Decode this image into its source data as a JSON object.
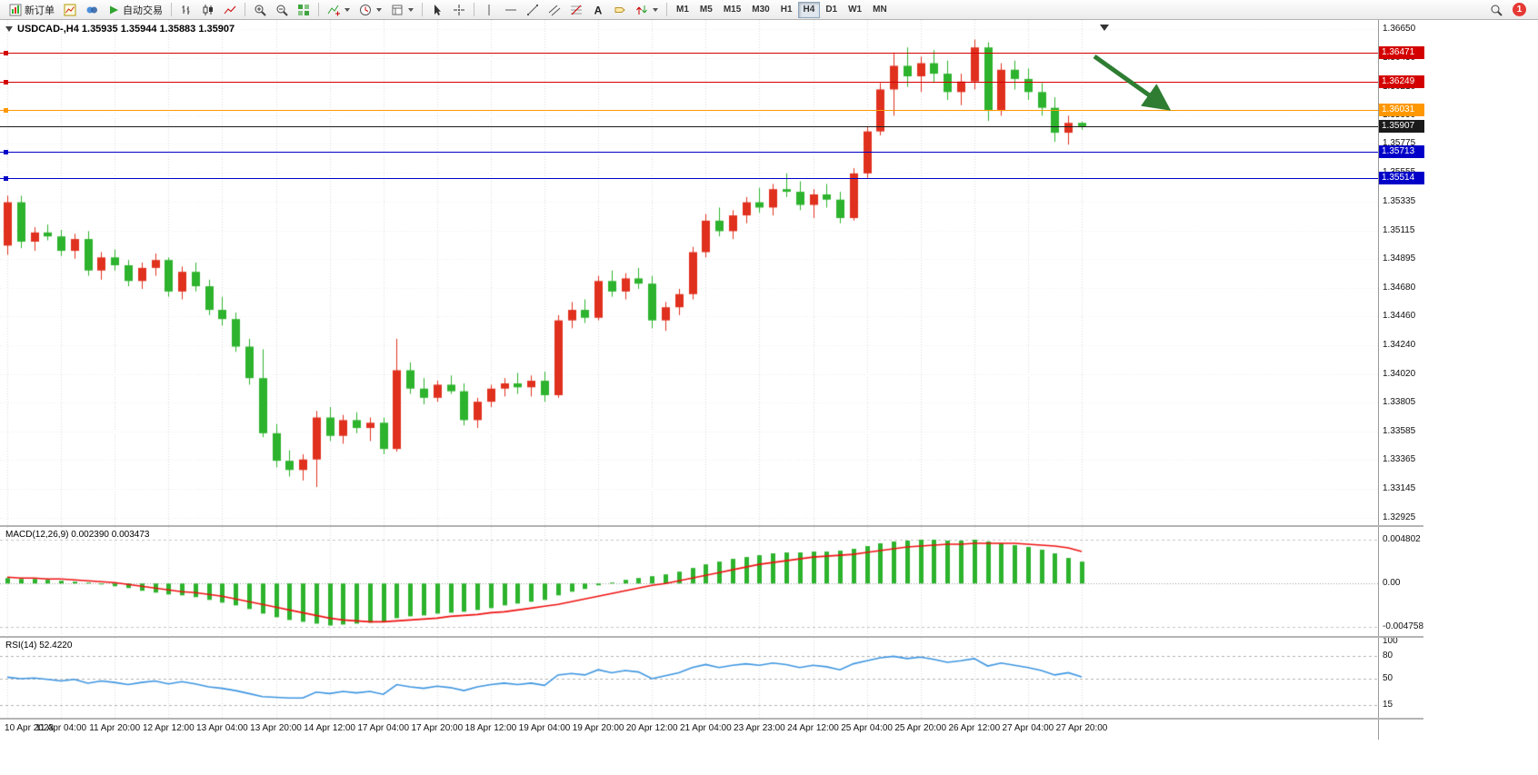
{
  "toolbar": {
    "new_order_label": "新订单",
    "auto_trading_label": "自动交易",
    "text_tool_glyph": "A",
    "timeframes": [
      "M1",
      "M5",
      "M15",
      "M30",
      "H1",
      "H4",
      "D1",
      "W1",
      "MN"
    ],
    "active_timeframe": "H4",
    "badge_count": "1"
  },
  "chart_data": {
    "type": "candlestick",
    "symbol": "USDCAD-",
    "timeframe": "H4",
    "title": "USDCAD-,H4  1.35935 1.35944 1.35883 1.35907",
    "ohlc_display": {
      "open": "1.35935",
      "high": "1.35944",
      "low": "1.35883",
      "close": "1.35907"
    },
    "y_range": [
      1.32925,
      1.3665
    ],
    "price_scale_labels": [
      "1.36650",
      "1.36430",
      "1.36210",
      "1.35990",
      "1.35775",
      "1.35555",
      "1.35335",
      "1.35115",
      "1.34895",
      "1.34680",
      "1.34460",
      "1.34240",
      "1.34020",
      "1.33805",
      "1.33585",
      "1.33365",
      "1.33145",
      "1.32925"
    ],
    "time_labels": [
      "10 Apr 2023",
      "11 Apr 04:00",
      "11 Apr 20:00",
      "12 Apr 12:00",
      "13 Apr 04:00",
      "13 Apr 20:00",
      "14 Apr 12:00",
      "17 Apr 04:00",
      "17 Apr 20:00",
      "18 Apr 12:00",
      "19 Apr 04:00",
      "19 Apr 20:00",
      "20 Apr 12:00",
      "21 Apr 04:00",
      "23 Apr 23:00",
      "24 Apr 12:00",
      "25 Apr 04:00",
      "25 Apr 20:00",
      "26 Apr 12:00",
      "27 Apr 04:00",
      "27 Apr 20:00"
    ],
    "label_every_n_candles": 4,
    "colors": {
      "up": "#e0301e",
      "down": "#2db32d",
      "macd_hist": "#2db32d",
      "macd_signal": "#ee1111",
      "rsi": "#3d95e0",
      "grid": "#d9d9d9"
    },
    "horizontal_lines": [
      {
        "price": 1.36471,
        "label": "1.36471",
        "color": "#d40000"
      },
      {
        "price": 1.36249,
        "label": "1.36249",
        "color": "#d40000"
      },
      {
        "price": 1.36031,
        "label": "1.36031",
        "color": "#ff9800"
      },
      {
        "price": 1.35713,
        "label": "1.35713",
        "color": "#0000c8"
      },
      {
        "price": 1.35514,
        "label": "1.35514",
        "color": "#0000c8"
      }
    ],
    "current_price": {
      "value": 1.35907,
      "label": "1.35907",
      "color": "#1a1a1a"
    },
    "arrow_annotation": {
      "color": "#2e7d32",
      "direction": "down-right"
    },
    "candles": [
      [
        1.35,
        1.3538,
        1.3493,
        1.3533
      ],
      [
        1.3533,
        1.3538,
        1.3498,
        1.3503
      ],
      [
        1.3503,
        1.3514,
        1.3496,
        1.351
      ],
      [
        1.351,
        1.3516,
        1.3504,
        1.3507
      ],
      [
        1.3507,
        1.3512,
        1.3492,
        1.3496
      ],
      [
        1.3496,
        1.3509,
        1.349,
        1.3505
      ],
      [
        1.3505,
        1.3511,
        1.3477,
        1.3481
      ],
      [
        1.3481,
        1.3495,
        1.3474,
        1.3491
      ],
      [
        1.3491,
        1.3497,
        1.3481,
        1.3485
      ],
      [
        1.3485,
        1.3489,
        1.3469,
        1.3473
      ],
      [
        1.3473,
        1.3487,
        1.3467,
        1.3483
      ],
      [
        1.3483,
        1.3494,
        1.3477,
        1.3489
      ],
      [
        1.3489,
        1.3491,
        1.3461,
        1.3465
      ],
      [
        1.3465,
        1.3484,
        1.3459,
        1.348
      ],
      [
        1.348,
        1.3487,
        1.3465,
        1.3469
      ],
      [
        1.3469,
        1.3474,
        1.3447,
        1.3451
      ],
      [
        1.3451,
        1.3461,
        1.3439,
        1.3444
      ],
      [
        1.3444,
        1.3449,
        1.3419,
        1.3423
      ],
      [
        1.3423,
        1.3429,
        1.3394,
        1.3399
      ],
      [
        1.3399,
        1.3421,
        1.3354,
        1.3357
      ],
      [
        1.3357,
        1.3364,
        1.3331,
        1.3336
      ],
      [
        1.3336,
        1.3344,
        1.3324,
        1.3329
      ],
      [
        1.3329,
        1.3341,
        1.3321,
        1.3337
      ],
      [
        1.3337,
        1.3374,
        1.3316,
        1.3369
      ],
      [
        1.3369,
        1.3377,
        1.3351,
        1.3355
      ],
      [
        1.3355,
        1.3371,
        1.3349,
        1.3367
      ],
      [
        1.3367,
        1.3373,
        1.3357,
        1.3361
      ],
      [
        1.3361,
        1.3369,
        1.3351,
        1.3365
      ],
      [
        1.3365,
        1.3369,
        1.3341,
        1.3345
      ],
      [
        1.3345,
        1.3429,
        1.3343,
        1.3405
      ],
      [
        1.3405,
        1.3411,
        1.3387,
        1.3391
      ],
      [
        1.3391,
        1.3399,
        1.3379,
        1.3384
      ],
      [
        1.3384,
        1.3397,
        1.3381,
        1.3394
      ],
      [
        1.3394,
        1.3401,
        1.3387,
        1.3389
      ],
      [
        1.3389,
        1.3395,
        1.3363,
        1.3367
      ],
      [
        1.3367,
        1.3384,
        1.3361,
        1.3381
      ],
      [
        1.3381,
        1.3394,
        1.3377,
        1.3391
      ],
      [
        1.3391,
        1.3399,
        1.3385,
        1.3395
      ],
      [
        1.3395,
        1.3403,
        1.3387,
        1.3392
      ],
      [
        1.3392,
        1.3401,
        1.3385,
        1.3397
      ],
      [
        1.3397,
        1.3404,
        1.3381,
        1.3386
      ],
      [
        1.3386,
        1.3447,
        1.3384,
        1.3443
      ],
      [
        1.3443,
        1.3457,
        1.3437,
        1.3451
      ],
      [
        1.3451,
        1.3459,
        1.3441,
        1.3445
      ],
      [
        1.3445,
        1.3477,
        1.3443,
        1.3473
      ],
      [
        1.3473,
        1.3481,
        1.3461,
        1.3465
      ],
      [
        1.3465,
        1.3479,
        1.3459,
        1.3475
      ],
      [
        1.3475,
        1.3483,
        1.3467,
        1.3471
      ],
      [
        1.3471,
        1.3477,
        1.3437,
        1.3443
      ],
      [
        1.3443,
        1.3457,
        1.3435,
        1.3453
      ],
      [
        1.3453,
        1.3467,
        1.3447,
        1.3463
      ],
      [
        1.3463,
        1.3499,
        1.3459,
        1.3495
      ],
      [
        1.3495,
        1.3524,
        1.3491,
        1.3519
      ],
      [
        1.3519,
        1.3529,
        1.3507,
        1.3511
      ],
      [
        1.3511,
        1.3527,
        1.3505,
        1.3523
      ],
      [
        1.3523,
        1.3537,
        1.3517,
        1.3533
      ],
      [
        1.3533,
        1.3544,
        1.3525,
        1.3529
      ],
      [
        1.3529,
        1.3547,
        1.3523,
        1.3543
      ],
      [
        1.3543,
        1.3555,
        1.3537,
        1.3541
      ],
      [
        1.3541,
        1.3549,
        1.3527,
        1.3531
      ],
      [
        1.3531,
        1.3543,
        1.3521,
        1.3539
      ],
      [
        1.3539,
        1.3547,
        1.3529,
        1.3535
      ],
      [
        1.3535,
        1.3541,
        1.3517,
        1.3521
      ],
      [
        1.3521,
        1.3559,
        1.3519,
        1.3555
      ],
      [
        1.3555,
        1.3591,
        1.3551,
        1.3587
      ],
      [
        1.3587,
        1.3624,
        1.3584,
        1.3619
      ],
      [
        1.3619,
        1.3647,
        1.3599,
        1.3637
      ],
      [
        1.3637,
        1.3651,
        1.3621,
        1.3629
      ],
      [
        1.3629,
        1.3644,
        1.3617,
        1.3639
      ],
      [
        1.3639,
        1.3649,
        1.3624,
        1.3631
      ],
      [
        1.3631,
        1.3641,
        1.3611,
        1.3617
      ],
      [
        1.3617,
        1.3631,
        1.3607,
        1.3625
      ],
      [
        1.3625,
        1.3657,
        1.3619,
        1.3651
      ],
      [
        1.3651,
        1.3655,
        1.3595,
        1.3603
      ],
      [
        1.3603,
        1.3639,
        1.3599,
        1.3634
      ],
      [
        1.3634,
        1.3641,
        1.3619,
        1.3627
      ],
      [
        1.3627,
        1.3635,
        1.3611,
        1.3617
      ],
      [
        1.3617,
        1.3624,
        1.3599,
        1.3605
      ],
      [
        1.3605,
        1.3613,
        1.3579,
        1.3586
      ],
      [
        1.3586,
        1.3599,
        1.3577,
        1.35935
      ],
      [
        1.35935,
        1.35944,
        1.35883,
        1.35907
      ]
    ],
    "macd": {
      "label": "MACD(12,26,9) 0.002390 0.003473",
      "scale_labels": [
        "0.004802",
        "0.00",
        "-0.004758"
      ],
      "range": [
        -0.004758,
        0.004802
      ],
      "hist": [
        0.0006,
        0.0005,
        0.0005,
        0.0004,
        0.0003,
        0.0002,
        0.0001,
        -0.0001,
        -0.0003,
        -0.0005,
        -0.0008,
        -0.001,
        -0.0012,
        -0.0013,
        -0.0015,
        -0.0018,
        -0.0021,
        -0.0024,
        -0.0028,
        -0.0033,
        -0.0037,
        -0.004,
        -0.0042,
        -0.0044,
        -0.0046,
        -0.0045,
        -0.0044,
        -0.0043,
        -0.0042,
        -0.0038,
        -0.0036,
        -0.0035,
        -0.0033,
        -0.0032,
        -0.0031,
        -0.0029,
        -0.0027,
        -0.0024,
        -0.0022,
        -0.002,
        -0.0018,
        -0.0013,
        -0.0009,
        -0.0006,
        -0.0002,
        0.0001,
        0.0004,
        0.0006,
        0.0008,
        0.001,
        0.0013,
        0.0017,
        0.0021,
        0.0024,
        0.0027,
        0.0029,
        0.0031,
        0.0033,
        0.0034,
        0.0034,
        0.0035,
        0.0035,
        0.0036,
        0.0038,
        0.0041,
        0.0044,
        0.0046,
        0.0047,
        0.0048,
        0.0048,
        0.0047,
        0.0047,
        0.0048,
        0.0046,
        0.0044,
        0.0042,
        0.004,
        0.0037,
        0.0033,
        0.0028,
        0.0024
      ],
      "signal": [
        0.0007,
        0.0006,
        0.0006,
        0.0005,
        0.0005,
        0.0004,
        0.0003,
        0.0002,
        0.0001,
        -0.0001,
        -0.0003,
        -0.0005,
        -0.0007,
        -0.0009,
        -0.001,
        -0.0012,
        -0.0014,
        -0.0017,
        -0.002,
        -0.0023,
        -0.0026,
        -0.0029,
        -0.0032,
        -0.0035,
        -0.0038,
        -0.004,
        -0.0041,
        -0.0042,
        -0.0042,
        -0.0041,
        -0.004,
        -0.0039,
        -0.0038,
        -0.0036,
        -0.0035,
        -0.0034,
        -0.0032,
        -0.0031,
        -0.0029,
        -0.0027,
        -0.0025,
        -0.0023,
        -0.002,
        -0.0017,
        -0.0014,
        -0.0011,
        -0.0008,
        -0.0005,
        -0.0002,
        0.0,
        0.0003,
        0.0006,
        0.0009,
        0.0012,
        0.0015,
        0.0018,
        0.0021,
        0.0023,
        0.0025,
        0.0027,
        0.0029,
        0.003,
        0.0031,
        0.0032,
        0.0034,
        0.0036,
        0.0038,
        0.004,
        0.0041,
        0.0042,
        0.0043,
        0.0043,
        0.0044,
        0.0044,
        0.0044,
        0.0044,
        0.0043,
        0.0042,
        0.0041,
        0.0039,
        0.0035
      ]
    },
    "rsi": {
      "label": "RSI(14) 52.4220",
      "scale_labels": [
        "100",
        "80",
        "50",
        "15"
      ],
      "levels": [
        80,
        50,
        15
      ],
      "range": [
        0,
        100
      ],
      "values": [
        52,
        50,
        51,
        49,
        47,
        49,
        44,
        47,
        45,
        42,
        45,
        47,
        43,
        46,
        43,
        39,
        37,
        34,
        30,
        26,
        25,
        24,
        24,
        32,
        30,
        33,
        31,
        33,
        29,
        42,
        39,
        37,
        40,
        38,
        34,
        39,
        42,
        44,
        42,
        44,
        41,
        55,
        57,
        55,
        62,
        58,
        61,
        59,
        50,
        54,
        58,
        65,
        69,
        65,
        68,
        70,
        68,
        71,
        69,
        65,
        68,
        66,
        62,
        70,
        74,
        78,
        80,
        77,
        79,
        76,
        72,
        74,
        77,
        67,
        71,
        68,
        65,
        61,
        55,
        58,
        52.42
      ]
    }
  }
}
